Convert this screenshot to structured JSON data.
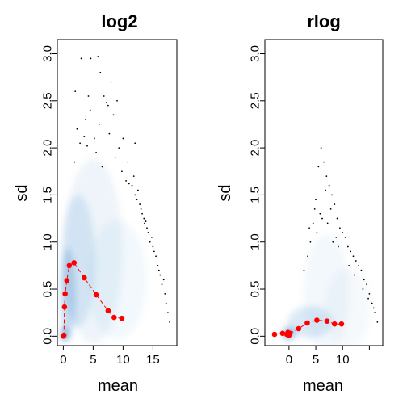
{
  "colors": {
    "smooth_density": "#4a8fce",
    "trend_line": "#ff0000",
    "trend_points": "#ff0000",
    "outlier_points": "#000000",
    "frame": "#000000"
  },
  "chart_data": [
    {
      "type": "scatter",
      "title": "log2",
      "xlabel": "mean",
      "ylabel": "sd",
      "xlim": [
        -1,
        19
      ],
      "ylim": [
        -0.1,
        3.15
      ],
      "xticks": [
        0,
        5,
        10,
        15
      ],
      "yticks": [
        0.0,
        0.5,
        1.0,
        1.5,
        2.0,
        2.5,
        3.0
      ],
      "grid": false,
      "legend": "none",
      "series": [
        {
          "kind": "running-median-line",
          "x": [
            0.0,
            0.1,
            0.2,
            0.3,
            0.6,
            1.0,
            1.8,
            3.5,
            5.5,
            7.5,
            8.5,
            9.8
          ],
          "y": [
            0.0,
            0.01,
            0.31,
            0.45,
            0.59,
            0.75,
            0.78,
            0.62,
            0.44,
            0.27,
            0.2,
            0.19
          ]
        },
        {
          "kind": "density-cloud",
          "cores": [
            {
              "x": 0.2,
              "y": 0.02,
              "sx": 0.45,
              "sy": 0.06,
              "w": 1.0
            },
            {
              "x": 0.8,
              "y": 0.45,
              "sx": 0.9,
              "sy": 0.35,
              "w": 0.55
            },
            {
              "x": 2.5,
              "y": 0.8,
              "sx": 2.0,
              "sy": 0.5,
              "w": 0.3
            },
            {
              "x": 5.0,
              "y": 0.9,
              "sx": 3.5,
              "sy": 0.7,
              "w": 0.18
            },
            {
              "x": 9.0,
              "y": 0.6,
              "sx": 3.5,
              "sy": 0.45,
              "w": 0.12
            }
          ]
        },
        {
          "kind": "outliers",
          "x": [
            3.0,
            4.6,
            5.8,
            6.2,
            4.2,
            8.0,
            2.0,
            9.0,
            7.5,
            3.7,
            4.5,
            6.8,
            7.2,
            2.3,
            8.4,
            5.2,
            6.0,
            2.8,
            7.7,
            1.9,
            9.3,
            5.5,
            3.5,
            4.0,
            8.7,
            10.0,
            6.5,
            9.8,
            10.5,
            11.5,
            12.0,
            11.0,
            12.8,
            13.2,
            12.3,
            13.5,
            14.0,
            13.8,
            14.5,
            15.0,
            15.5,
            15.8,
            16.0,
            16.5,
            17.0,
            17.2,
            17.5,
            16.8,
            14.8,
            13.0,
            12.5,
            15.2,
            16.2,
            17.8,
            14.2,
            11.8,
            10.8,
            12.0,
            13.6
          ],
          "y": [
            2.95,
            2.95,
            2.97,
            2.8,
            2.55,
            2.7,
            2.6,
            2.5,
            2.45,
            2.3,
            2.4,
            2.55,
            2.48,
            2.2,
            2.35,
            2.1,
            2.25,
            2.05,
            2.15,
            1.85,
            2.0,
            1.95,
            2.12,
            2.02,
            1.9,
            2.1,
            1.8,
            1.75,
            1.65,
            1.6,
            1.5,
            1.62,
            1.4,
            1.3,
            1.45,
            1.25,
            1.15,
            1.22,
            1.0,
            0.95,
            0.85,
            0.75,
            0.7,
            0.55,
            0.45,
            0.35,
            0.25,
            0.6,
            1.05,
            1.35,
            1.55,
            0.9,
            0.65,
            0.15,
            1.1,
            1.7,
            1.85,
            2.05,
            1.2
          ]
        }
      ]
    },
    {
      "type": "scatter",
      "title": "rlog",
      "xlabel": "mean",
      "ylabel": "sd",
      "xlim": [
        -4.5,
        17.5
      ],
      "ylim": [
        -0.1,
        3.15
      ],
      "xticks": [
        0,
        5,
        10,
        15
      ],
      "xtick_labels": [
        "0",
        "5",
        "10",
        ""
      ],
      "yticks": [
        0.0,
        0.5,
        1.0,
        1.5,
        2.0,
        2.5,
        3.0
      ],
      "grid": false,
      "legend": "none",
      "series": [
        {
          "kind": "running-median-line",
          "x": [
            -2.7,
            -1.2,
            -0.4,
            -0.2,
            0.0,
            0.2,
            1.8,
            3.4,
            5.2,
            7.1,
            8.5,
            9.8
          ],
          "y": [
            0.02,
            0.03,
            0.02,
            0.04,
            0.01,
            0.03,
            0.08,
            0.14,
            0.17,
            0.16,
            0.13,
            0.13
          ]
        },
        {
          "kind": "density-cloud",
          "cores": [
            {
              "x": 0.0,
              "y": 0.03,
              "sx": 0.9,
              "sy": 0.05,
              "w": 0.9
            },
            {
              "x": 4.0,
              "y": 0.15,
              "sx": 3.0,
              "sy": 0.12,
              "w": 0.35
            },
            {
              "x": 7.0,
              "y": 0.45,
              "sx": 3.0,
              "sy": 0.45,
              "w": 0.12
            },
            {
              "x": 11.0,
              "y": 0.3,
              "sx": 3.0,
              "sy": 0.3,
              "w": 0.1
            }
          ]
        },
        {
          "kind": "outliers",
          "x": [
            6.0,
            6.5,
            5.5,
            7.0,
            7.5,
            5.0,
            8.0,
            8.5,
            6.8,
            5.8,
            4.5,
            9.0,
            9.5,
            10.0,
            7.8,
            4.0,
            10.5,
            11.0,
            11.5,
            12.0,
            12.5,
            13.0,
            13.5,
            14.0,
            14.5,
            15.0,
            15.5,
            16.0,
            3.5,
            3.8,
            6.2,
            7.2,
            8.8,
            12.2,
            13.8,
            14.8,
            15.8,
            4.8,
            9.2,
            11.2,
            5.2,
            8.2,
            2.8,
            16.5
          ],
          "y": [
            2.0,
            1.85,
            1.8,
            1.7,
            1.6,
            1.45,
            1.5,
            1.4,
            1.55,
            1.3,
            1.2,
            1.25,
            1.15,
            1.1,
            1.35,
            1.0,
            1.05,
            0.95,
            0.9,
            0.85,
            0.8,
            0.75,
            0.7,
            0.6,
            0.55,
            0.45,
            0.35,
            0.25,
            0.85,
            1.15,
            1.25,
            1.2,
            1.05,
            0.65,
            0.5,
            0.4,
            0.3,
            1.35,
            0.95,
            0.75,
            1.1,
            1.0,
            0.7,
            0.15
          ]
        }
      ]
    }
  ]
}
